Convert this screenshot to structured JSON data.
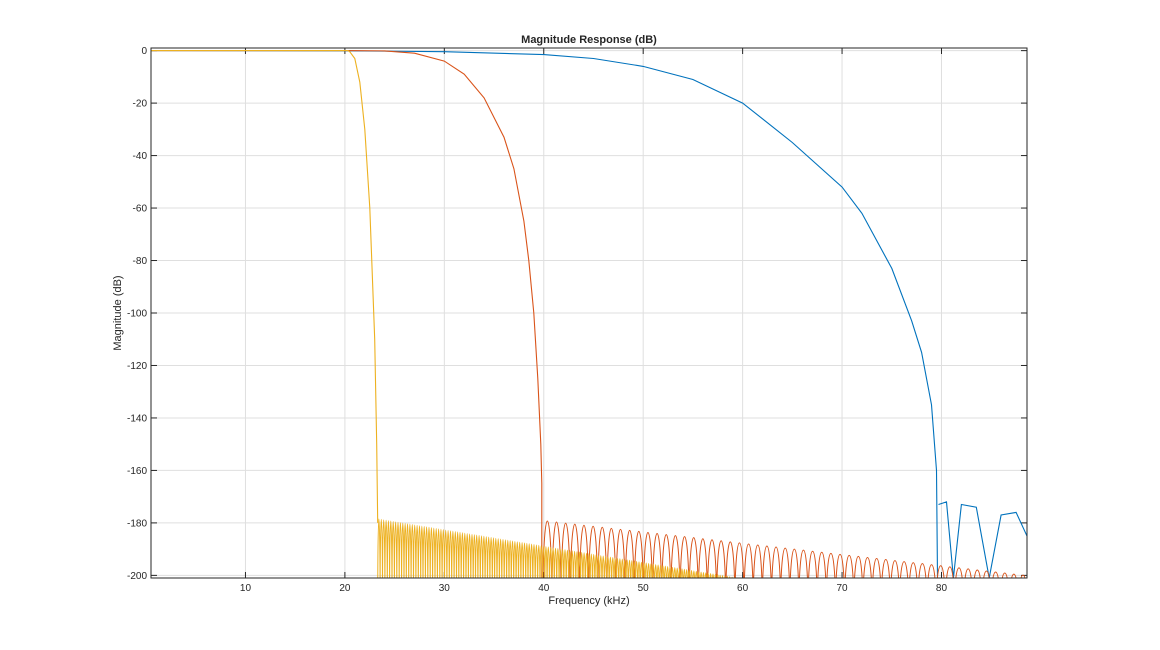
{
  "chart_data": {
    "type": "line",
    "title": "Magnitude Response (dB)",
    "xlabel": "Frequency (kHz)",
    "ylabel": "Magnitude (dB)",
    "xlim": [
      0.5,
      88.6
    ],
    "ylim": [
      -201,
      1
    ],
    "xticks": [
      10,
      20,
      30,
      40,
      50,
      60,
      70,
      80
    ],
    "yticks": [
      0,
      -20,
      -40,
      -60,
      -80,
      -100,
      -120,
      -140,
      -160,
      -180,
      -200
    ],
    "grid": true,
    "series": [
      {
        "color": "#0072BD",
        "passband": [
          [
            0.5,
            0
          ],
          [
            20,
            -0.05
          ],
          [
            30,
            -0.4
          ],
          [
            40,
            -1.5
          ],
          [
            45,
            -3
          ],
          [
            50,
            -6
          ],
          [
            55,
            -11
          ],
          [
            60,
            -20
          ],
          [
            62,
            -26
          ],
          [
            65,
            -35
          ],
          [
            70,
            -52
          ],
          [
            72,
            -62
          ],
          [
            75,
            -83
          ],
          [
            77,
            -103
          ],
          [
            78,
            -115
          ],
          [
            79,
            -135
          ],
          [
            79.5,
            -160
          ],
          [
            79.6,
            -201
          ]
        ],
        "sidelobes": [
          [
            79.7,
            -173
          ],
          [
            80.5,
            -172
          ],
          [
            81.2,
            -201
          ],
          [
            82,
            -173
          ],
          [
            83.5,
            -174
          ],
          [
            84.8,
            -201
          ],
          [
            86,
            -177
          ],
          [
            87.5,
            -176
          ],
          [
            88.6,
            -185
          ]
        ]
      },
      {
        "color": "#D95319",
        "passband": [
          [
            0.5,
            0
          ],
          [
            20,
            0
          ],
          [
            24,
            -0.1
          ],
          [
            27,
            -1
          ],
          [
            30,
            -4
          ],
          [
            32,
            -9
          ],
          [
            34,
            -18
          ],
          [
            36,
            -33
          ],
          [
            37,
            -45
          ],
          [
            38,
            -65
          ],
          [
            38.5,
            -80
          ],
          [
            39,
            -100
          ],
          [
            39.4,
            -125
          ],
          [
            39.7,
            -150
          ],
          [
            39.8,
            -165
          ],
          [
            39.8,
            -201
          ]
        ],
        "sidelobes": [
          [
            39.9,
            -169
          ],
          [
            88.6,
            -197
          ]
        ]
      },
      {
        "color": "#EDB120",
        "passband": [
          [
            0.5,
            0
          ],
          [
            20.3,
            0
          ],
          [
            20.5,
            -0.5
          ],
          [
            21,
            -3
          ],
          [
            21.5,
            -12
          ],
          [
            22,
            -30
          ],
          [
            22.5,
            -60
          ],
          [
            23,
            -110
          ],
          [
            23.2,
            -150
          ],
          [
            23.3,
            -180
          ]
        ],
        "sidelobes": [
          [
            23.3,
            -168
          ],
          [
            63,
            -201
          ]
        ]
      }
    ]
  }
}
